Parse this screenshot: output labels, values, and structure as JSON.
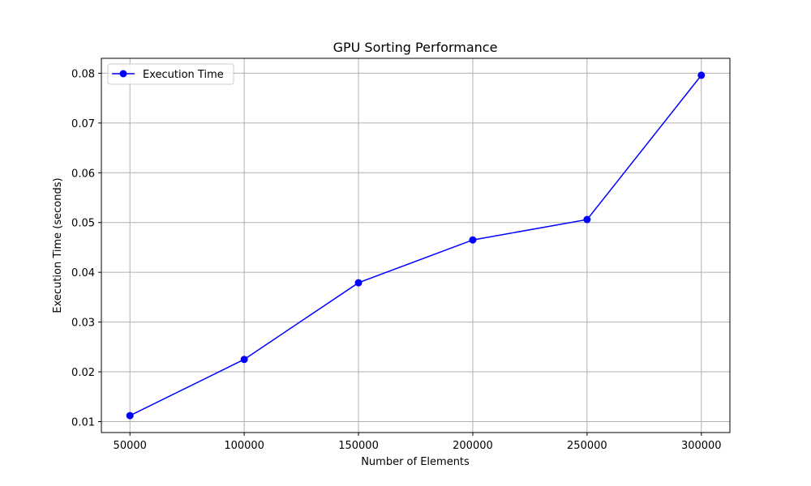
{
  "chart_data": {
    "type": "line",
    "title": "GPU Sorting Performance",
    "xlabel": "Number of Elements",
    "ylabel": "Execution Time (seconds)",
    "x": [
      50000,
      100000,
      150000,
      200000,
      250000,
      300000
    ],
    "series": [
      {
        "name": "Execution Time",
        "color": "#0000ff",
        "marker": "circle",
        "values": [
          0.0112,
          0.0225,
          0.0379,
          0.0465,
          0.0506,
          0.0796
        ]
      }
    ],
    "xticks": [
      50000,
      100000,
      150000,
      200000,
      250000,
      300000
    ],
    "xtick_labels": [
      "50000",
      "100000",
      "150000",
      "200000",
      "250000",
      "300000"
    ],
    "yticks": [
      0.01,
      0.02,
      0.03,
      0.04,
      0.05,
      0.06,
      0.07,
      0.08
    ],
    "ytick_labels": [
      "0.01",
      "0.02",
      "0.03",
      "0.04",
      "0.05",
      "0.06",
      "0.07",
      "0.08"
    ],
    "xlim": [
      37500,
      312500
    ],
    "ylim": [
      0.0078,
      0.083
    ],
    "grid": true,
    "legend_position": "upper-left"
  }
}
